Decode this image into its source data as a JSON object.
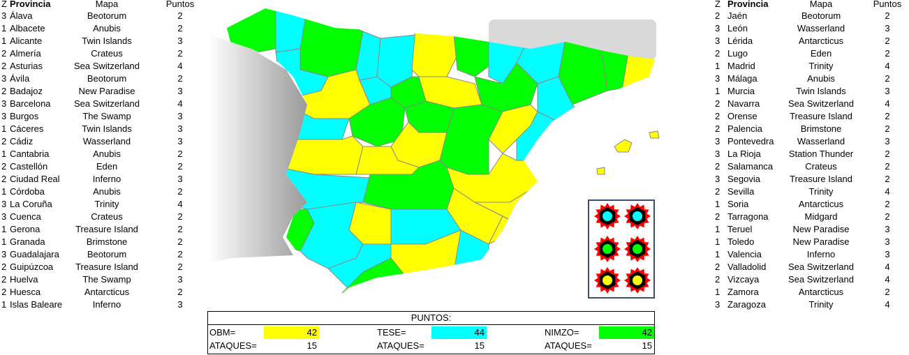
{
  "left_table": {
    "header": [
      "Z",
      "Provincia",
      "Mapa",
      "Puntos"
    ],
    "rows": [
      [
        3,
        "Álava",
        "Beotorum",
        2
      ],
      [
        1,
        "Albacete",
        "Anubis",
        2
      ],
      [
        1,
        "Alicante",
        "Twin Islands",
        3
      ],
      [
        2,
        "Almería",
        "Crateus",
        2
      ],
      [
        2,
        "Asturias",
        "Sea Switzerland",
        4
      ],
      [
        3,
        "Ávila",
        "Beotorum",
        2
      ],
      [
        2,
        "Badajoz",
        "New Paradise",
        3
      ],
      [
        3,
        "Barcelona",
        "Sea Switzerland",
        4
      ],
      [
        3,
        "Burgos",
        "The Swamp",
        3
      ],
      [
        1,
        "Cáceres",
        "Twin Islands",
        3
      ],
      [
        2,
        "Cádiz",
        "Wasserland",
        3
      ],
      [
        1,
        "Cantabria",
        "Anubis",
        2
      ],
      [
        2,
        "Castellón",
        "Eden",
        2
      ],
      [
        2,
        "Ciudad Real",
        "Inferno",
        3
      ],
      [
        1,
        "Córdoba",
        "Anubis",
        2
      ],
      [
        3,
        "La Coruña",
        "Trinity",
        4
      ],
      [
        3,
        "Cuenca",
        "Crateus",
        2
      ],
      [
        1,
        "Gerona",
        "Treasure Island",
        2
      ],
      [
        1,
        "Granada",
        "Brimstone",
        2
      ],
      [
        3,
        "Guadalajara",
        "Beotorum",
        2
      ],
      [
        2,
        "Guipúzcoa",
        "Treasure Island",
        2
      ],
      [
        2,
        "Huelva",
        "The Swamp",
        3
      ],
      [
        2,
        "Huesca",
        "Antarcticus",
        2
      ],
      [
        1,
        "Islas Baleare",
        "Inferno",
        3
      ]
    ]
  },
  "right_table": {
    "header": [
      "Z",
      "Provincia",
      "Mapa",
      "Puntos"
    ],
    "rows": [
      [
        2,
        "Jaén",
        "Beotorum",
        2
      ],
      [
        3,
        "León",
        "Wasserland",
        3
      ],
      [
        3,
        "Lérida",
        "Antarcticus",
        2
      ],
      [
        2,
        "Lugo",
        "Eden",
        2
      ],
      [
        1,
        "Madrid",
        "Trinity",
        4
      ],
      [
        3,
        "Málaga",
        "Anubis",
        2
      ],
      [
        1,
        "Murcia",
        "Twin Islands",
        3
      ],
      [
        2,
        "Navarra",
        "Sea Switzerland",
        4
      ],
      [
        2,
        "Orense",
        "Treasure Island",
        2
      ],
      [
        2,
        "Palencia",
        "Brimstone",
        2
      ],
      [
        3,
        "Pontevedra",
        "Wasserland",
        3
      ],
      [
        3,
        "La Rioja",
        "Station Thunder",
        2
      ],
      [
        2,
        "Salamanca",
        "Crateus",
        2
      ],
      [
        3,
        "Segovia",
        "Treasure Island",
        2
      ],
      [
        2,
        "Sevilla",
        "Trinity",
        4
      ],
      [
        1,
        "Soria",
        "Antarcticus",
        2
      ],
      [
        2,
        "Tarragona",
        "Midgard",
        2
      ],
      [
        1,
        "Teruel",
        "New Paradise",
        3
      ],
      [
        1,
        "Toledo",
        "New Paradise",
        3
      ],
      [
        1,
        "Valencia",
        "Inferno",
        3
      ],
      [
        2,
        "Valladolid",
        "Sea Switzerland",
        4
      ],
      [
        2,
        "Vizcaya",
        "Sea Switzerland",
        4
      ],
      [
        1,
        "Zamora",
        "Antarcticus",
        2
      ],
      [
        3,
        "Zaragoza",
        "Trinity",
        4
      ]
    ]
  },
  "score": {
    "title": "PUNTOS:",
    "teams": [
      {
        "label": "OBM=",
        "points": 42,
        "color": "#ffff00",
        "attacks_label": "ATAQUES=",
        "attacks": 15
      },
      {
        "label": "TESE=",
        "points": 44,
        "color": "#00ffff",
        "attacks_label": "ATAQUES=",
        "attacks": 15
      },
      {
        "label": "NIMZO=",
        "points": 42,
        "color": "#00ff00",
        "attacks_label": "ATAQUES=",
        "attacks": 15
      }
    ]
  }
}
